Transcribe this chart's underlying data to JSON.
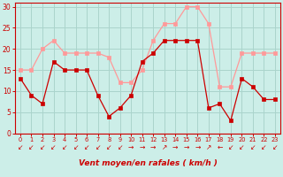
{
  "xlabel": "Vent moyen/en rafales ( km/h )",
  "bg_color": "#cceee8",
  "grid_color": "#aad4cc",
  "line1_color": "#ff9999",
  "line2_color": "#cc0000",
  "x_labels": [
    "0",
    "1",
    "2",
    "3",
    "4",
    "5",
    "6",
    "7",
    "8",
    "9",
    "10",
    "11",
    "12",
    "13",
    "14",
    "15",
    "16",
    "17",
    "18",
    "19",
    "20",
    "21",
    "22",
    "23"
  ],
  "line1_y": [
    15,
    15,
    20,
    22,
    19,
    19,
    19,
    19,
    18,
    12,
    12,
    15,
    22,
    26,
    26,
    30,
    30,
    26,
    11,
    11,
    19,
    19,
    19,
    19
  ],
  "line2_y": [
    13,
    9,
    7,
    17,
    15,
    15,
    15,
    9,
    4,
    6,
    9,
    17,
    19,
    22,
    22,
    22,
    22,
    6,
    7,
    3,
    13,
    11,
    8,
    8
  ],
  "arrow_chars": [
    "↙",
    "↙",
    "↙",
    "↙",
    "↙",
    "↙",
    "↙",
    "↙",
    "↙",
    "↙",
    "→",
    "→",
    "→",
    "↗",
    "→",
    "→",
    "→",
    "↗",
    "←",
    "↙",
    "↙",
    "↙",
    "↙",
    "↙"
  ],
  "ylim": [
    0,
    31
  ],
  "xlim": [
    -0.5,
    23.5
  ],
  "yticks": [
    0,
    5,
    10,
    15,
    20,
    25,
    30
  ],
  "spine_color": "#cc0000",
  "tick_color": "#cc0000",
  "label_color": "#cc0000"
}
